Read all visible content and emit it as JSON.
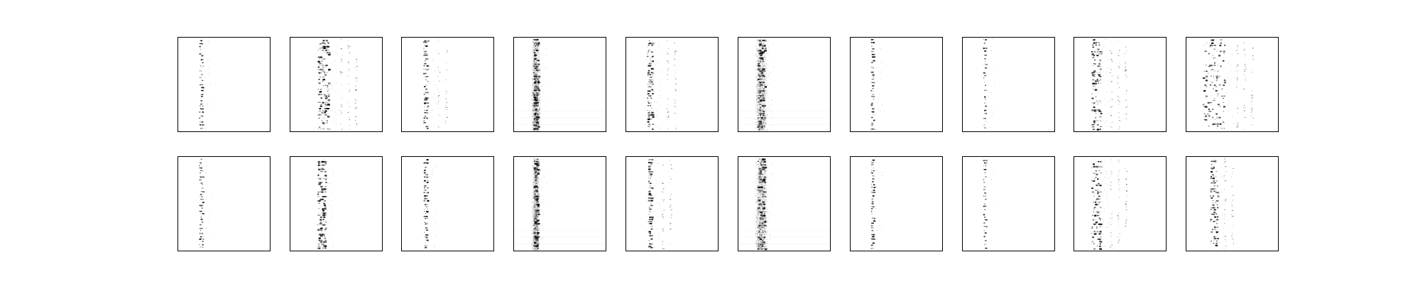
{
  "figure": {
    "background": "#ffffff",
    "frame_color": "#000000",
    "ink_color": "#000000",
    "rows": 2,
    "cols": 10,
    "panels": [
      {
        "row": 0,
        "col": 0,
        "pattern": "sparse-single-column",
        "band_center": 0.25,
        "band_spread": 0.02,
        "density": 0.35,
        "secondary_band_center": null,
        "noise_stripe": false
      },
      {
        "row": 0,
        "col": 1,
        "pattern": "dense-multi-column",
        "band_center": 0.36,
        "band_spread": 0.06,
        "density": 0.85,
        "secondary_band_center": 0.55,
        "noise_stripe": false
      },
      {
        "row": 0,
        "col": 2,
        "pattern": "column-with-right-dots",
        "band_center": 0.26,
        "band_spread": 0.025,
        "density": 0.55,
        "secondary_band_center": 0.4,
        "noise_stripe": false
      },
      {
        "row": 0,
        "col": 3,
        "pattern": "noisy-vertical-stripe",
        "band_center": 0.24,
        "band_spread": 0.03,
        "density": 0.9,
        "secondary_band_center": null,
        "noise_stripe": true
      },
      {
        "row": 0,
        "col": 4,
        "pattern": "column-with-right-dots",
        "band_center": 0.26,
        "band_spread": 0.03,
        "density": 0.7,
        "secondary_band_center": 0.45,
        "noise_stripe": false
      },
      {
        "row": 0,
        "col": 5,
        "pattern": "noisy-vertical-stripe",
        "band_center": 0.25,
        "band_spread": 0.04,
        "density": 0.95,
        "secondary_band_center": null,
        "noise_stripe": true
      },
      {
        "row": 0,
        "col": 6,
        "pattern": "sparse-single-column",
        "band_center": 0.24,
        "band_spread": 0.015,
        "density": 0.45,
        "secondary_band_center": null,
        "noise_stripe": false
      },
      {
        "row": 0,
        "col": 7,
        "pattern": "sparse-single-column",
        "band_center": 0.24,
        "band_spread": 0.015,
        "density": 0.25,
        "secondary_band_center": null,
        "noise_stripe": false
      },
      {
        "row": 0,
        "col": 8,
        "pattern": "dense-multi-column",
        "band_center": 0.24,
        "band_spread": 0.05,
        "density": 0.8,
        "secondary_band_center": 0.4,
        "noise_stripe": false
      },
      {
        "row": 0,
        "col": 9,
        "pattern": "dense-multi-column",
        "band_center": 0.3,
        "band_spread": 0.12,
        "density": 0.75,
        "secondary_band_center": 0.55,
        "noise_stripe": false
      },
      {
        "row": 1,
        "col": 0,
        "pattern": "sparse-single-column",
        "band_center": 0.25,
        "band_spread": 0.02,
        "density": 0.45,
        "secondary_band_center": null,
        "noise_stripe": false
      },
      {
        "row": 1,
        "col": 1,
        "pattern": "dense-multi-column",
        "band_center": 0.34,
        "band_spread": 0.045,
        "density": 0.85,
        "secondary_band_center": null,
        "noise_stripe": false
      },
      {
        "row": 1,
        "col": 2,
        "pattern": "sparse-single-column",
        "band_center": 0.26,
        "band_spread": 0.02,
        "density": 0.55,
        "secondary_band_center": null,
        "noise_stripe": false
      },
      {
        "row": 1,
        "col": 3,
        "pattern": "noisy-vertical-stripe",
        "band_center": 0.24,
        "band_spread": 0.025,
        "density": 0.9,
        "secondary_band_center": null,
        "noise_stripe": true
      },
      {
        "row": 1,
        "col": 4,
        "pattern": "column-with-right-dots",
        "band_center": 0.26,
        "band_spread": 0.02,
        "density": 0.65,
        "secondary_band_center": 0.4,
        "noise_stripe": false
      },
      {
        "row": 1,
        "col": 5,
        "pattern": "noisy-vertical-stripe",
        "band_center": 0.25,
        "band_spread": 0.04,
        "density": 0.95,
        "secondary_band_center": null,
        "noise_stripe": true
      },
      {
        "row": 1,
        "col": 6,
        "pattern": "sparse-single-column",
        "band_center": 0.24,
        "band_spread": 0.015,
        "density": 0.5,
        "secondary_band_center": null,
        "noise_stripe": false
      },
      {
        "row": 1,
        "col": 7,
        "pattern": "sparse-single-column",
        "band_center": 0.24,
        "band_spread": 0.015,
        "density": 0.3,
        "secondary_band_center": null,
        "noise_stripe": false
      },
      {
        "row": 1,
        "col": 8,
        "pattern": "dense-multi-column",
        "band_center": 0.24,
        "band_spread": 0.05,
        "density": 0.8,
        "secondary_band_center": 0.4,
        "noise_stripe": false
      },
      {
        "row": 1,
        "col": 9,
        "pattern": "column-with-right-dots",
        "band_center": 0.3,
        "band_spread": 0.04,
        "density": 0.65,
        "secondary_band_center": 0.42,
        "noise_stripe": false
      }
    ]
  }
}
